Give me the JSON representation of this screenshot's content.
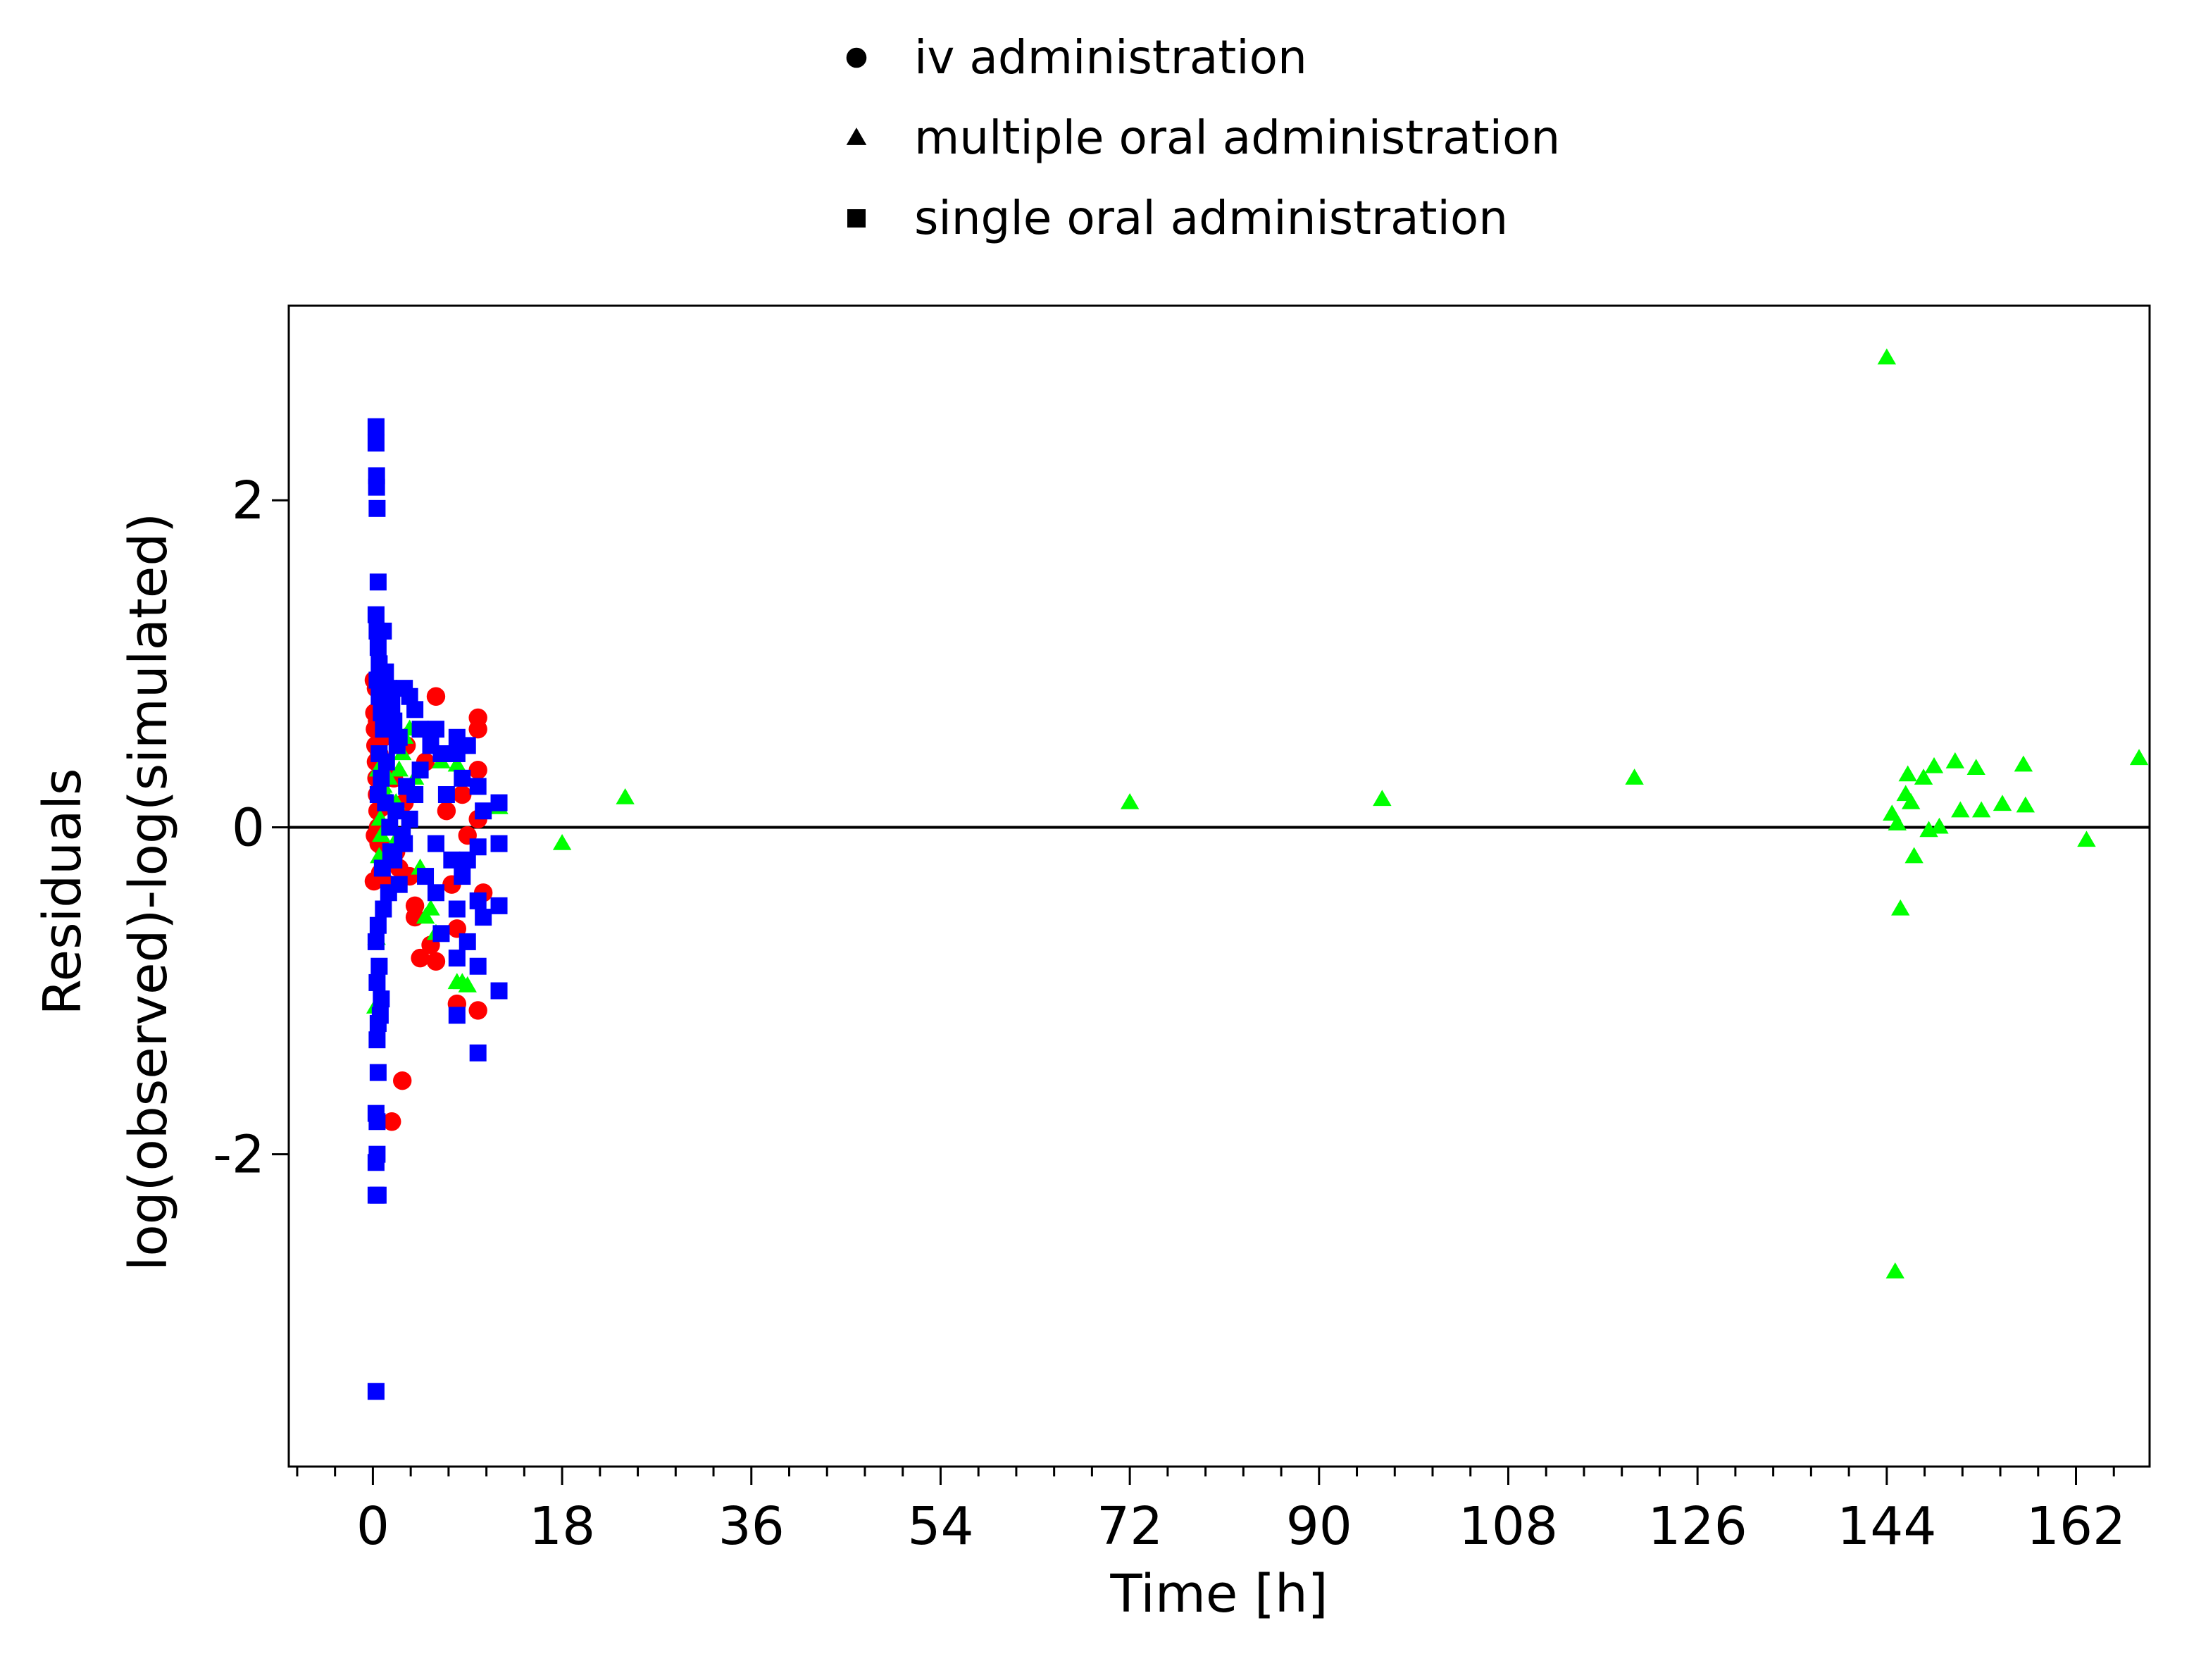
{
  "chart_data": {
    "type": "scatter",
    "title": "",
    "xlabel": "Time [h]",
    "ylabel_lines": [
      "Residuals",
      "log(observed)-log(simulated)"
    ],
    "xlim": [
      -8,
      169
    ],
    "ylim": [
      -3.91,
      3.19
    ],
    "xticks": [
      0,
      18,
      36,
      54,
      72,
      90,
      108,
      126,
      144,
      162
    ],
    "yticks": [
      -2,
      0,
      2
    ],
    "minor_xtick_step": 3.6,
    "reference_line_y": 0,
    "grid": false,
    "legend_position": "top-center",
    "series": [
      {
        "name": "iv administration",
        "marker": "circle",
        "color": "#ff0000",
        "points": [
          [
            0.1,
            0.9
          ],
          [
            0.15,
            0.7
          ],
          [
            0.2,
            0.6
          ],
          [
            0.25,
            0.5
          ],
          [
            0.3,
            0.4
          ],
          [
            0.35,
            0.3
          ],
          [
            0.4,
            0.2
          ],
          [
            0.45,
            0.1
          ],
          [
            0.5,
            0.0
          ],
          [
            0.55,
            -0.1
          ],
          [
            0.1,
            -0.33
          ],
          [
            0.2,
            -0.05
          ],
          [
            0.3,
            0.85
          ],
          [
            0.4,
            0.65
          ],
          [
            0.6,
            0.45
          ],
          [
            0.7,
            0.25
          ],
          [
            0.8,
            0.12
          ],
          [
            0.9,
            -0.12
          ],
          [
            1.0,
            0.55
          ],
          [
            1.2,
            0.35
          ],
          [
            1.5,
            -0.35
          ],
          [
            1.8,
            -1.8
          ],
          [
            2.0,
            0.3
          ],
          [
            2.5,
            -0.25
          ],
          [
            2.8,
            -1.55
          ],
          [
            3.0,
            0.15
          ],
          [
            3.5,
            -0.3
          ],
          [
            4.0,
            -0.55
          ],
          [
            4.0,
            -0.48
          ],
          [
            4.5,
            -0.8
          ],
          [
            5.0,
            0.4
          ],
          [
            5.5,
            -0.72
          ],
          [
            6.0,
            0.8
          ],
          [
            6.0,
            -0.82
          ],
          [
            7.0,
            0.1
          ],
          [
            7.5,
            -0.35
          ],
          [
            8.0,
            -1.08
          ],
          [
            8.0,
            -0.62
          ],
          [
            8.5,
            0.2
          ],
          [
            9.0,
            -0.05
          ],
          [
            10.0,
            0.67
          ],
          [
            10.0,
            0.6
          ],
          [
            10.0,
            0.35
          ],
          [
            10.0,
            -1.12
          ],
          [
            10.0,
            0.05
          ],
          [
            10.5,
            -0.4
          ],
          [
            3.2,
            0.5
          ],
          [
            2.2,
            -0.15
          ],
          [
            1.3,
            0.62
          ],
          [
            0.7,
            -0.28
          ]
        ]
      },
      {
        "name": "multiple oral administration",
        "marker": "triangle",
        "color": "#00ff00",
        "points": [
          [
            0.25,
            -1.1
          ],
          [
            0.35,
            -0.68
          ],
          [
            0.5,
            0.35
          ],
          [
            0.6,
            -0.18
          ],
          [
            0.7,
            0.05
          ],
          [
            0.8,
            -0.05
          ],
          [
            1.0,
            0.25
          ],
          [
            1.2,
            0.2
          ],
          [
            1.5,
            0.3
          ],
          [
            1.8,
            0.15
          ],
          [
            2.0,
            -0.1
          ],
          [
            2.2,
            0.15
          ],
          [
            2.5,
            0.35
          ],
          [
            2.8,
            0.45
          ],
          [
            3.0,
            0.55
          ],
          [
            3.5,
            0.6
          ],
          [
            4.0,
            0.3
          ],
          [
            4.5,
            -0.25
          ],
          [
            5.0,
            -0.55
          ],
          [
            5.5,
            -0.5
          ],
          [
            6.0,
            -0.65
          ],
          [
            6.5,
            0.4
          ],
          [
            8.0,
            0.38
          ],
          [
            8.0,
            -0.95
          ],
          [
            8.5,
            -0.95
          ],
          [
            9.0,
            -0.97
          ],
          [
            12.0,
            0.12
          ],
          [
            18.0,
            -0.1
          ],
          [
            24.0,
            0.18
          ],
          [
            72.0,
            0.15
          ],
          [
            96.0,
            0.17
          ],
          [
            120.0,
            0.3
          ],
          [
            144.0,
            2.87
          ],
          [
            144.5,
            0.08
          ],
          [
            144.8,
            -2.72
          ],
          [
            145.0,
            0.02
          ],
          [
            145.3,
            -0.5
          ],
          [
            145.8,
            0.2
          ],
          [
            146.0,
            0.32
          ],
          [
            146.3,
            0.15
          ],
          [
            146.6,
            -0.18
          ],
          [
            147.5,
            0.3
          ],
          [
            148.0,
            -0.02
          ],
          [
            148.5,
            0.37
          ],
          [
            149.0,
            0.0
          ],
          [
            150.5,
            0.4
          ],
          [
            151.0,
            0.1
          ],
          [
            152.5,
            0.36
          ],
          [
            153.0,
            0.1
          ],
          [
            155.0,
            0.14
          ],
          [
            157.0,
            0.38
          ],
          [
            157.2,
            0.13
          ],
          [
            163.0,
            -0.08
          ],
          [
            168.0,
            0.42
          ]
        ]
      },
      {
        "name": "single oral administration",
        "marker": "square",
        "color": "#0000ff",
        "points": [
          [
            0.3,
            2.45
          ],
          [
            0.3,
            2.35
          ],
          [
            0.35,
            2.15
          ],
          [
            0.35,
            2.08
          ],
          [
            0.4,
            1.95
          ],
          [
            0.5,
            1.5
          ],
          [
            0.3,
            1.3
          ],
          [
            0.4,
            1.2
          ],
          [
            0.5,
            1.1
          ],
          [
            0.6,
            1.0
          ],
          [
            0.3,
            -2.05
          ],
          [
            0.4,
            -2.0
          ],
          [
            0.3,
            -2.25
          ],
          [
            0.5,
            -2.25
          ],
          [
            0.3,
            -3.45
          ],
          [
            0.4,
            -1.8
          ],
          [
            0.3,
            -1.75
          ],
          [
            0.5,
            -1.5
          ],
          [
            0.4,
            -1.3
          ],
          [
            0.5,
            -1.2
          ],
          [
            0.4,
            -0.95
          ],
          [
            0.6,
            -0.85
          ],
          [
            0.8,
            -1.05
          ],
          [
            0.7,
            -1.15
          ],
          [
            0.3,
            -0.7
          ],
          [
            0.5,
            -0.6
          ],
          [
            0.4,
            0.9
          ],
          [
            0.6,
            0.8
          ],
          [
            0.8,
            0.7
          ],
          [
            1.0,
            1.2
          ],
          [
            1.0,
            0.6
          ],
          [
            1.2,
            0.95
          ],
          [
            1.5,
            0.85
          ],
          [
            1.8,
            0.75
          ],
          [
            2.0,
            0.65
          ],
          [
            2.5,
            0.55
          ],
          [
            3.0,
            0.85
          ],
          [
            3.5,
            0.8
          ],
          [
            4.0,
            0.72
          ],
          [
            4.5,
            0.6
          ],
          [
            1.0,
            -0.5
          ],
          [
            1.5,
            -0.4
          ],
          [
            2.0,
            -0.2
          ],
          [
            2.5,
            -0.35
          ],
          [
            3.0,
            -0.1
          ],
          [
            3.5,
            0.05
          ],
          [
            4.0,
            0.2
          ],
          [
            4.5,
            0.35
          ],
          [
            5.0,
            -0.3
          ],
          [
            5.5,
            0.5
          ],
          [
            6.0,
            0.6
          ],
          [
            6.0,
            -0.1
          ],
          [
            6.0,
            -0.4
          ],
          [
            6.5,
            0.45
          ],
          [
            6.5,
            -0.65
          ],
          [
            7.0,
            0.2
          ],
          [
            7.5,
            -0.2
          ],
          [
            8.0,
            0.55
          ],
          [
            8.0,
            0.45
          ],
          [
            8.0,
            -0.5
          ],
          [
            8.0,
            -0.8
          ],
          [
            8.0,
            -1.15
          ],
          [
            8.5,
            0.3
          ],
          [
            8.5,
            -0.3
          ],
          [
            9.0,
            0.5
          ],
          [
            9.0,
            -0.2
          ],
          [
            9.0,
            -0.7
          ],
          [
            10.0,
            0.25
          ],
          [
            10.0,
            -0.12
          ],
          [
            10.0,
            -0.45
          ],
          [
            10.0,
            -0.85
          ],
          [
            10.0,
            -1.38
          ],
          [
            10.5,
            0.1
          ],
          [
            10.5,
            -0.55
          ],
          [
            12.0,
            0.15
          ],
          [
            12.0,
            -0.1
          ],
          [
            12.0,
            -0.48
          ],
          [
            12.0,
            -1.0
          ],
          [
            0.8,
            0.3
          ],
          [
            1.2,
            0.15
          ],
          [
            1.6,
            0.0
          ],
          [
            2.2,
            0.1
          ],
          [
            2.8,
            -0.05
          ],
          [
            3.2,
            0.25
          ],
          [
            0.6,
            0.45
          ],
          [
            0.9,
            -0.25
          ],
          [
            1.3,
            0.4
          ],
          [
            1.7,
            -0.15
          ],
          [
            2.3,
            0.5
          ],
          [
            0.5,
            0.2
          ]
        ]
      }
    ]
  }
}
